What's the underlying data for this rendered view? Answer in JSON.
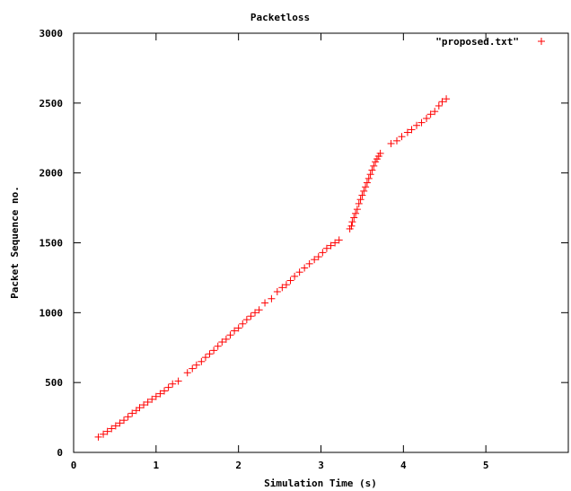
{
  "chart_data": {
    "type": "scatter",
    "title": "Packetloss",
    "xlabel": "Simulation Time (s)",
    "ylabel": "Packet Sequence no.",
    "xlim": [
      0,
      6
    ],
    "ylim": [
      0,
      3000
    ],
    "xticks": [
      0,
      1,
      2,
      3,
      4,
      5
    ],
    "yticks": [
      0,
      500,
      1000,
      1500,
      2000,
      2500,
      3000
    ],
    "grid": false,
    "legend_position": "top-right",
    "marker": "+",
    "series": [
      {
        "name": "\"proposed.txt\"",
        "color": "#ff0000",
        "points": [
          [
            0.3,
            110
          ],
          [
            0.36,
            130
          ],
          [
            0.41,
            150
          ],
          [
            0.46,
            170
          ],
          [
            0.51,
            190
          ],
          [
            0.56,
            210
          ],
          [
            0.61,
            230
          ],
          [
            0.66,
            255
          ],
          [
            0.71,
            280
          ],
          [
            0.76,
            300
          ],
          [
            0.8,
            320
          ],
          [
            0.85,
            340
          ],
          [
            0.9,
            360
          ],
          [
            0.95,
            380
          ],
          [
            1.0,
            400
          ],
          [
            1.05,
            420
          ],
          [
            1.1,
            440
          ],
          [
            1.15,
            465
          ],
          [
            1.2,
            490
          ],
          [
            1.27,
            510
          ],
          [
            1.38,
            570
          ],
          [
            1.44,
            600
          ],
          [
            1.49,
            625
          ],
          [
            1.55,
            650
          ],
          [
            1.6,
            680
          ],
          [
            1.65,
            705
          ],
          [
            1.7,
            730
          ],
          [
            1.75,
            760
          ],
          [
            1.8,
            790
          ],
          [
            1.85,
            810
          ],
          [
            1.9,
            840
          ],
          [
            1.95,
            870
          ],
          [
            2.0,
            890
          ],
          [
            2.05,
            920
          ],
          [
            2.1,
            950
          ],
          [
            2.15,
            975
          ],
          [
            2.2,
            1000
          ],
          [
            2.25,
            1020
          ],
          [
            2.32,
            1070
          ],
          [
            2.4,
            1100
          ],
          [
            2.47,
            1150
          ],
          [
            2.53,
            1180
          ],
          [
            2.58,
            1200
          ],
          [
            2.63,
            1230
          ],
          [
            2.68,
            1260
          ],
          [
            2.74,
            1290
          ],
          [
            2.8,
            1320
          ],
          [
            2.86,
            1350
          ],
          [
            2.92,
            1380
          ],
          [
            2.97,
            1400
          ],
          [
            3.02,
            1430
          ],
          [
            3.07,
            1460
          ],
          [
            3.12,
            1480
          ],
          [
            3.17,
            1500
          ],
          [
            3.22,
            1520
          ],
          [
            3.35,
            1600
          ],
          [
            3.37,
            1620
          ],
          [
            3.38,
            1650
          ],
          [
            3.4,
            1680
          ],
          [
            3.42,
            1710
          ],
          [
            3.44,
            1740
          ],
          [
            3.46,
            1780
          ],
          [
            3.48,
            1810
          ],
          [
            3.5,
            1840
          ],
          [
            3.52,
            1870
          ],
          [
            3.54,
            1900
          ],
          [
            3.56,
            1930
          ],
          [
            3.58,
            1960
          ],
          [
            3.6,
            1990
          ],
          [
            3.62,
            2020
          ],
          [
            3.64,
            2050
          ],
          [
            3.66,
            2080
          ],
          [
            3.68,
            2100
          ],
          [
            3.7,
            2120
          ],
          [
            3.72,
            2140
          ],
          [
            3.85,
            2210
          ],
          [
            3.92,
            2230
          ],
          [
            3.98,
            2260
          ],
          [
            4.05,
            2290
          ],
          [
            4.1,
            2310
          ],
          [
            4.16,
            2340
          ],
          [
            4.22,
            2360
          ],
          [
            4.28,
            2390
          ],
          [
            4.33,
            2420
          ],
          [
            4.38,
            2440
          ],
          [
            4.43,
            2480
          ],
          [
            4.47,
            2510
          ],
          [
            4.52,
            2530
          ]
        ]
      }
    ]
  }
}
